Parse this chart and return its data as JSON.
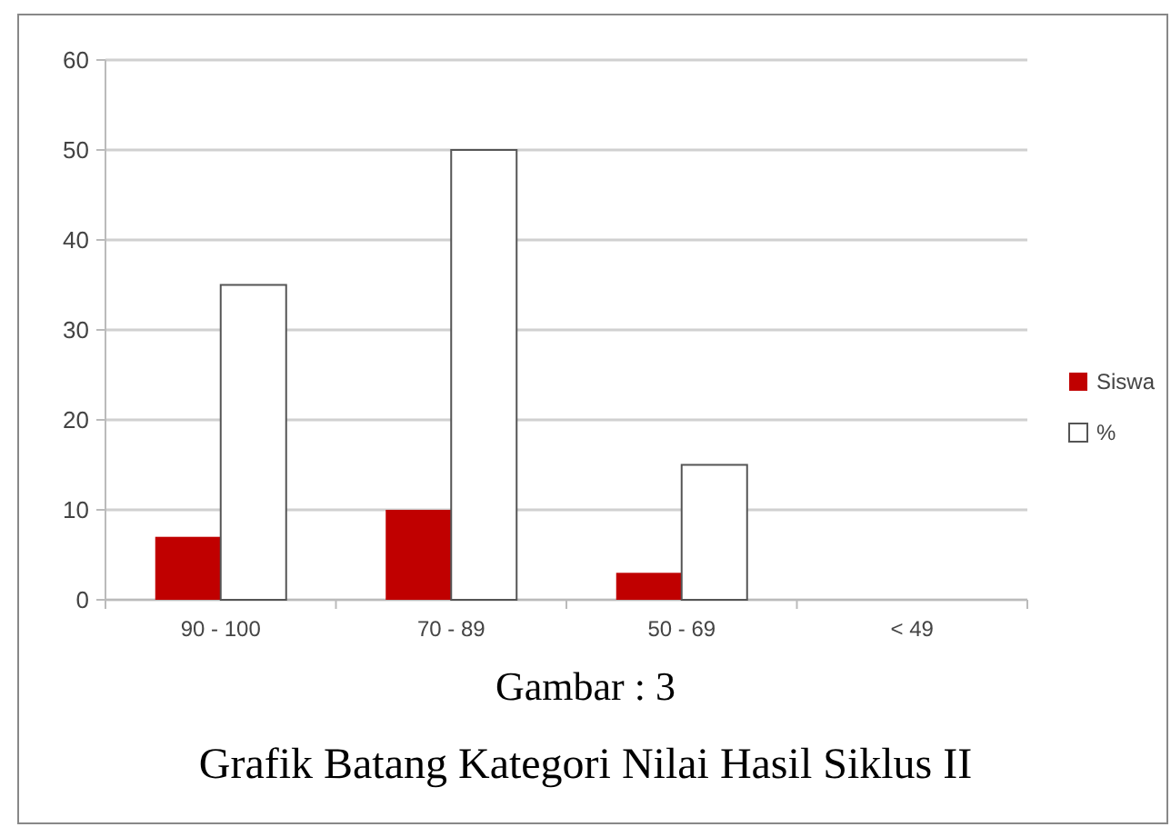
{
  "chart_data": {
    "type": "bar",
    "title": "Gambar : 3",
    "subtitle": "Grafik Batang Kategori Nilai Hasil Siklus II",
    "categories": [
      "90 - 100",
      "70 - 89",
      "50 - 69",
      "< 49"
    ],
    "series": [
      {
        "name": "Siswa",
        "color": "#c00000",
        "values": [
          7,
          10,
          3,
          0
        ]
      },
      {
        "name": "%",
        "color": "#ffffff",
        "values": [
          35,
          50,
          15,
          0
        ]
      }
    ],
    "ylim": [
      0,
      60
    ],
    "yticks": [
      0,
      10,
      20,
      30,
      40,
      50,
      60
    ],
    "grid": "y",
    "legend": "right"
  }
}
